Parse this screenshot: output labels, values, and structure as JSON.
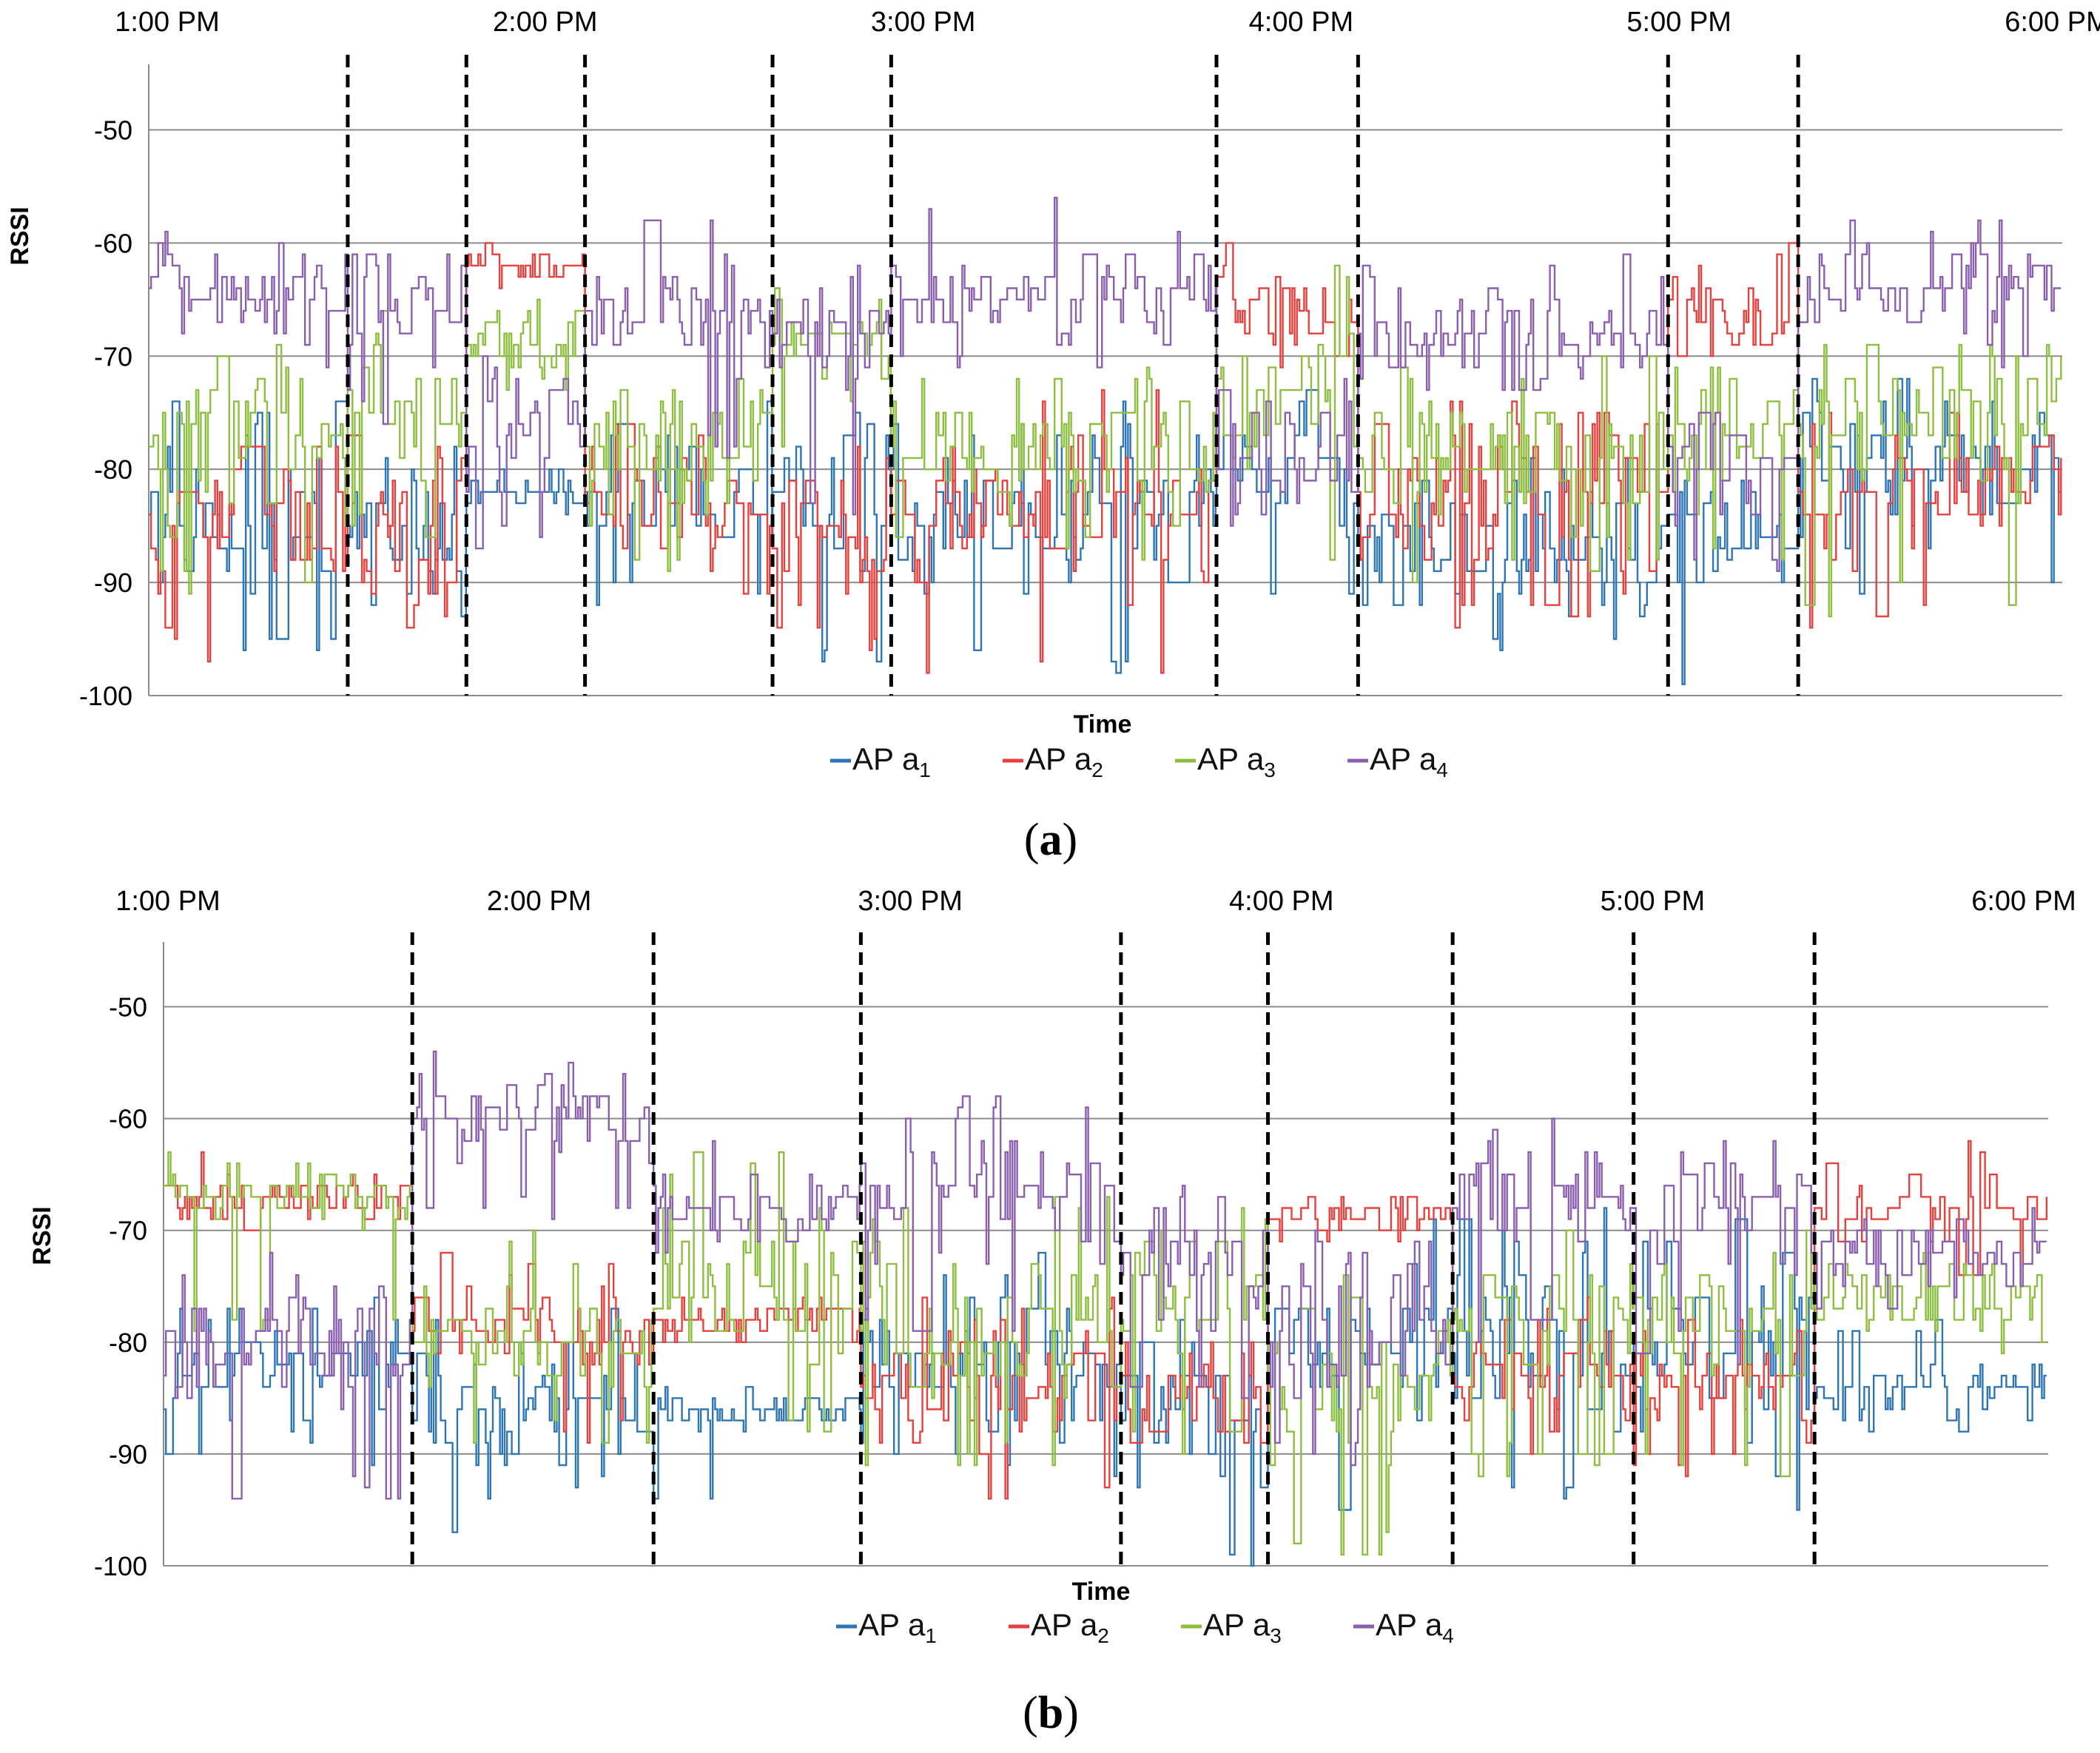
{
  "chart_data": [
    {
      "panel": "a",
      "type": "line",
      "label_open": "(",
      "label_letter": "a",
      "label_close": ")",
      "xlabel": "Time",
      "ylabel": "RSSI",
      "ylim": [
        -100,
        -45
      ],
      "yticks": [
        -50,
        -60,
        -70,
        -80,
        -90,
        -100
      ],
      "time_ticks": [
        {
          "label": "1:00 PM",
          "t": 0
        },
        {
          "label": "2:00 PM",
          "t": 1
        },
        {
          "label": "3:00 PM",
          "t": 2
        },
        {
          "label": "4:00 PM",
          "t": 3
        },
        {
          "label": "5:00 PM",
          "t": 4
        },
        {
          "label": "6:00 PM",
          "t": 5
        }
      ],
      "xlim": [
        0,
        5
      ],
      "dashed_lines_t": [
        0.52,
        0.83,
        1.14,
        1.63,
        1.94,
        2.79,
        3.16,
        3.97,
        4.31
      ],
      "grid": true,
      "legend_position": "bottom-center",
      "series": [
        {
          "name": "AP",
          "sub": "1",
          "color": "#2e75b6",
          "segments": [
            {
              "t": [
                0.0,
                0.52
              ],
              "mean": -84,
              "range": 6,
              "min": -97,
              "max": -74
            },
            {
              "t": [
                0.52,
                0.83
              ],
              "mean": -85,
              "range": 5,
              "min": -94,
              "max": -78
            },
            {
              "t": [
                0.83,
                1.14
              ],
              "mean": -82,
              "range": 1.5,
              "min": -84,
              "max": -80
            },
            {
              "t": [
                1.14,
                1.63
              ],
              "mean": -82,
              "range": 6,
              "min": -93,
              "max": -74
            },
            {
              "t": [
                1.63,
                1.94
              ],
              "mean": -82,
              "range": 6,
              "min": -98,
              "max": -74
            },
            {
              "t": [
                1.94,
                2.79
              ],
              "mean": -84,
              "range": 5,
              "min": -98,
              "max": -74
            },
            {
              "t": [
                2.79,
                3.16
              ],
              "mean": -80,
              "range": 6,
              "min": -92,
              "max": -72
            },
            {
              "t": [
                3.16,
                3.97
              ],
              "mean": -87,
              "range": 5,
              "min": -97,
              "max": -78
            },
            {
              "t": [
                3.97,
                4.31
              ],
              "mean": -84,
              "range": 5,
              "min": -100,
              "max": -76
            },
            {
              "t": [
                4.31,
                5.0
              ],
              "mean": -79,
              "range": 6,
              "min": -92,
              "max": -72
            }
          ]
        },
        {
          "name": "AP",
          "sub": "2",
          "color": "#e8403c",
          "segments": [
            {
              "t": [
                0.0,
                0.52
              ],
              "mean": -84,
              "range": 6,
              "min": -97,
              "max": -78
            },
            {
              "t": [
                0.52,
                0.83
              ],
              "mean": -84,
              "range": 6,
              "min": -94,
              "max": -76
            },
            {
              "t": [
                0.83,
                1.14
              ],
              "mean": -62,
              "range": 1.5,
              "min": -65,
              "max": -60
            },
            {
              "t": [
                1.14,
                1.63
              ],
              "mean": -83,
              "range": 6,
              "min": -93,
              "max": -76
            },
            {
              "t": [
                1.63,
                1.94
              ],
              "mean": -87,
              "range": 6,
              "min": -96,
              "max": -78
            },
            {
              "t": [
                1.94,
                2.79
              ],
              "mean": -84,
              "range": 6,
              "min": -99,
              "max": -72
            },
            {
              "t": [
                2.79,
                3.16
              ],
              "mean": -66,
              "range": 3,
              "min": -71,
              "max": -60
            },
            {
              "t": [
                3.16,
                3.97
              ],
              "mean": -82,
              "range": 6,
              "min": -94,
              "max": -74
            },
            {
              "t": [
                3.97,
                4.31
              ],
              "mean": -65,
              "range": 4,
              "min": -72,
              "max": -59
            },
            {
              "t": [
                4.31,
                5.0
              ],
              "mean": -82,
              "range": 5,
              "min": -95,
              "max": -74
            }
          ]
        },
        {
          "name": "AP",
          "sub": "3",
          "color": "#8cbf3f",
          "segments": [
            {
              "t": [
                0.0,
                0.52
              ],
              "mean": -78,
              "range": 6,
              "min": -92,
              "max": -66
            },
            {
              "t": [
                0.52,
                0.83
              ],
              "mean": -75,
              "range": 6,
              "min": -86,
              "max": -66
            },
            {
              "t": [
                0.83,
                1.14
              ],
              "mean": -69,
              "range": 2.5,
              "min": -74,
              "max": -64
            },
            {
              "t": [
                1.14,
                1.63
              ],
              "mean": -78,
              "range": 5,
              "min": -90,
              "max": -70
            },
            {
              "t": [
                1.63,
                1.94
              ],
              "mean": -69,
              "range": 3,
              "min": -78,
              "max": -63
            },
            {
              "t": [
                1.94,
                2.79
              ],
              "mean": -78,
              "range": 5,
              "min": -88,
              "max": -70
            },
            {
              "t": [
                2.79,
                3.16
              ],
              "mean": -74,
              "range": 5,
              "min": -88,
              "max": -60
            },
            {
              "t": [
                3.16,
                3.97
              ],
              "mean": -79,
              "range": 5,
              "min": -90,
              "max": -70
            },
            {
              "t": [
                3.97,
                4.31
              ],
              "mean": -77,
              "range": 5,
              "min": -88,
              "max": -70
            },
            {
              "t": [
                4.31,
                5.0
              ],
              "mean": -76,
              "range": 5,
              "min": -93,
              "max": -68
            }
          ]
        },
        {
          "name": "AP",
          "sub": "4",
          "color": "#8b5fb0",
          "segments": [
            {
              "t": [
                0.0,
                0.52
              ],
              "mean": -64,
              "range": 4,
              "min": -72,
              "max": -59
            },
            {
              "t": [
                0.52,
                0.83
              ],
              "mean": -66,
              "range": 4,
              "min": -76,
              "max": -60
            },
            {
              "t": [
                0.83,
                1.14
              ],
              "mean": -77,
              "range": 5,
              "min": -88,
              "max": -70
            },
            {
              "t": [
                1.14,
                1.63
              ],
              "mean": -66,
              "range": 4,
              "min": -80,
              "max": -58
            },
            {
              "t": [
                1.63,
                1.94
              ],
              "mean": -68,
              "range": 4,
              "min": -86,
              "max": -62
            },
            {
              "t": [
                1.94,
                2.79
              ],
              "mean": -65,
              "range": 4,
              "min": -72,
              "max": -56
            },
            {
              "t": [
                2.79,
                3.16
              ],
              "mean": -80,
              "range": 5,
              "min": -95,
              "max": -70
            },
            {
              "t": [
                3.16,
                3.97
              ],
              "mean": -68,
              "range": 3,
              "min": -74,
              "max": -60
            },
            {
              "t": [
                3.97,
                4.31
              ],
              "mean": -80,
              "range": 5,
              "min": -90,
              "max": -70
            },
            {
              "t": [
                4.31,
                5.0
              ],
              "mean": -64,
              "range": 4,
              "min": -72,
              "max": -58
            }
          ]
        }
      ]
    },
    {
      "panel": "b",
      "type": "line",
      "label_open": "(",
      "label_letter": "b",
      "label_close": ")",
      "xlabel": "Time",
      "ylabel": "RSSI",
      "ylim": [
        -100,
        -45
      ],
      "yticks": [
        -50,
        -60,
        -70,
        -80,
        -90,
        -100
      ],
      "time_ticks": [
        {
          "label": "1:00 PM",
          "t": 0
        },
        {
          "label": "2:00 PM",
          "t": 1
        },
        {
          "label": "3:00 PM",
          "t": 2
        },
        {
          "label": "4:00 PM",
          "t": 3
        },
        {
          "label": "5:00 PM",
          "t": 4
        },
        {
          "label": "6:00 PM",
          "t": 5
        }
      ],
      "xlim": [
        0,
        5
      ],
      "dashed_lines_t": [
        0.66,
        1.3,
        1.85,
        2.54,
        2.93,
        3.42,
        3.9,
        4.38
      ],
      "grid": true,
      "legend_position": "bottom-center",
      "series": [
        {
          "name": "AP",
          "sub": "1",
          "color": "#2e75b6",
          "segments": [
            {
              "t": [
                0.0,
                0.66
              ],
              "mean": -82,
              "range": 4,
              "min": -92,
              "max": -76
            },
            {
              "t": [
                0.66,
                1.3
              ],
              "mean": -86,
              "range": 6,
              "min": -100,
              "max": -76
            },
            {
              "t": [
                1.3,
                1.85
              ],
              "mean": -86,
              "range": 1.5,
              "min": -97,
              "max": -84
            },
            {
              "t": [
                1.85,
                2.54
              ],
              "mean": -82,
              "range": 5,
              "min": -92,
              "max": -72
            },
            {
              "t": [
                2.54,
                2.93
              ],
              "mean": -86,
              "range": 5,
              "min": -100,
              "max": -78
            },
            {
              "t": [
                2.93,
                3.42
              ],
              "mean": -80,
              "range": 6,
              "min": -95,
              "max": -68
            },
            {
              "t": [
                3.42,
                3.9
              ],
              "mean": -81,
              "range": 6,
              "min": -95,
              "max": -68
            },
            {
              "t": [
                3.9,
                4.38
              ],
              "mean": -80,
              "range": 6,
              "min": -95,
              "max": -68
            },
            {
              "t": [
                4.38,
                5.0
              ],
              "mean": -84,
              "range": 2.5,
              "min": -89,
              "max": -78
            }
          ]
        },
        {
          "name": "AP",
          "sub": "2",
          "color": "#e8403c",
          "segments": [
            {
              "t": [
                0.0,
                0.66
              ],
              "mean": -67,
              "range": 2,
              "min": -80,
              "max": -62
            },
            {
              "t": [
                0.66,
                1.3
              ],
              "mean": -79,
              "range": 3,
              "min": -90,
              "max": -72
            },
            {
              "t": [
                1.3,
                1.85
              ],
              "mean": -78,
              "range": 1.5,
              "min": -81,
              "max": -76
            },
            {
              "t": [
                1.85,
                2.54
              ],
              "mean": -84,
              "range": 5,
              "min": -95,
              "max": -76
            },
            {
              "t": [
                2.54,
                2.93
              ],
              "mean": -84,
              "range": 4,
              "min": -89,
              "max": -78
            },
            {
              "t": [
                2.93,
                3.42
              ],
              "mean": -69,
              "range": 2,
              "min": -72,
              "max": -66
            },
            {
              "t": [
                3.42,
                3.9
              ],
              "mean": -83,
              "range": 4,
              "min": -90,
              "max": -76
            },
            {
              "t": [
                3.9,
                4.38
              ],
              "mean": -84,
              "range": 4,
              "min": -92,
              "max": -76
            },
            {
              "t": [
                4.38,
                5.0
              ],
              "mean": -68,
              "range": 3,
              "min": -76,
              "max": -62
            }
          ]
        },
        {
          "name": "AP",
          "sub": "3",
          "color": "#8cbf3f",
          "segments": [
            {
              "t": [
                0.0,
                0.66
              ],
              "mean": -67,
              "range": 2,
              "min": -80,
              "max": -62
            },
            {
              "t": [
                0.66,
                1.3
              ],
              "mean": -80,
              "range": 4,
              "min": -90,
              "max": -70
            },
            {
              "t": [
                1.3,
                1.85
              ],
              "mean": -75,
              "range": 6,
              "min": -90,
              "max": -62
            },
            {
              "t": [
                1.85,
                2.54
              ],
              "mean": -78,
              "range": 6,
              "min": -92,
              "max": -66
            },
            {
              "t": [
                2.54,
                2.93
              ],
              "mean": -75,
              "range": 5,
              "min": -90,
              "max": -68
            },
            {
              "t": [
                2.93,
                3.42
              ],
              "mean": -83,
              "range": 7,
              "min": -100,
              "max": -72
            },
            {
              "t": [
                3.42,
                3.9
              ],
              "mean": -78,
              "range": 5,
              "min": -92,
              "max": -70
            },
            {
              "t": [
                3.9,
                4.38
              ],
              "mean": -78,
              "range": 5,
              "min": -92,
              "max": -70
            },
            {
              "t": [
                4.38,
                5.0
              ],
              "mean": -76,
              "range": 3,
              "min": -82,
              "max": -70
            }
          ]
        },
        {
          "name": "AP",
          "sub": "4",
          "color": "#8b5fb0",
          "segments": [
            {
              "t": [
                0.0,
                0.66
              ],
              "mean": -80,
              "range": 4,
              "min": -94,
              "max": -72
            },
            {
              "t": [
                0.66,
                1.3
              ],
              "mean": -60,
              "range": 3,
              "min": -70,
              "max": -54
            },
            {
              "t": [
                1.3,
                1.85
              ],
              "mean": -68,
              "range": 3,
              "min": -74,
              "max": -60
            },
            {
              "t": [
                1.85,
                2.54
              ],
              "mean": -66,
              "range": 5,
              "min": -80,
              "max": -58
            },
            {
              "t": [
                2.54,
                2.93
              ],
              "mean": -72,
              "range": 5,
              "min": -85,
              "max": -64
            },
            {
              "t": [
                2.93,
                3.42
              ],
              "mean": -80,
              "range": 6,
              "min": -92,
              "max": -70
            },
            {
              "t": [
                3.42,
                3.9
              ],
              "mean": -68,
              "range": 5,
              "min": -80,
              "max": -60
            },
            {
              "t": [
                3.9,
                4.38
              ],
              "mean": -68,
              "range": 5,
              "min": -82,
              "max": -60
            },
            {
              "t": [
                4.38,
                5.0
              ],
              "mean": -72,
              "range": 3,
              "min": -78,
              "max": -66
            }
          ]
        }
      ]
    }
  ]
}
